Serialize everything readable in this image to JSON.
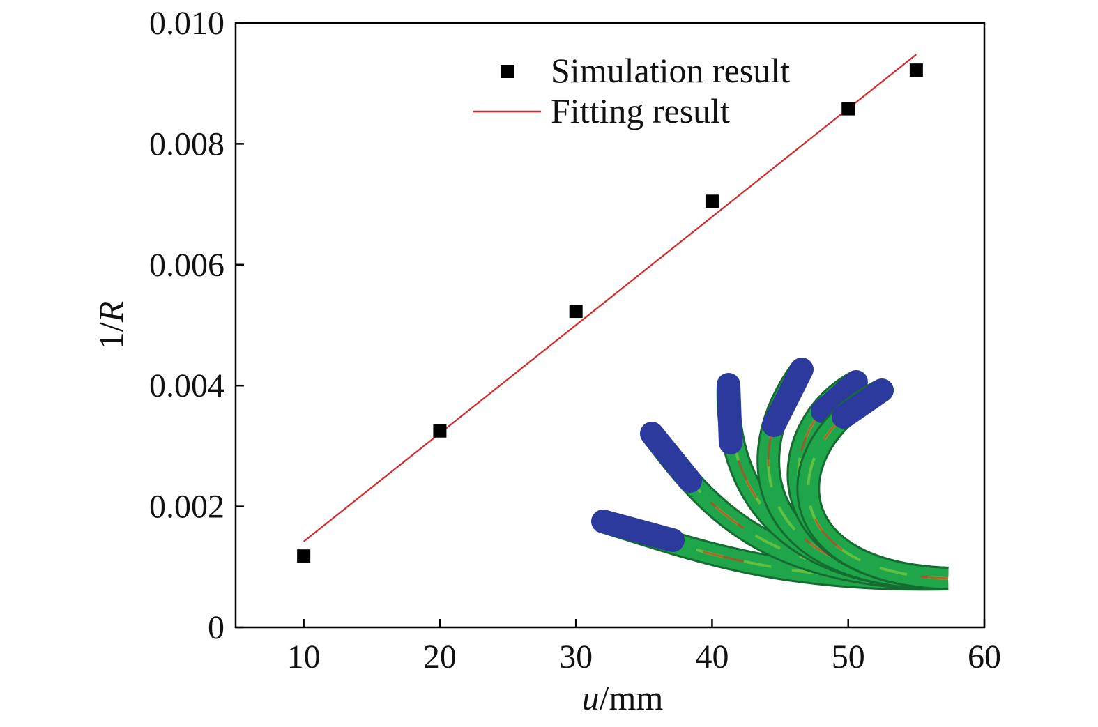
{
  "chart_data": {
    "type": "scatter",
    "xlabel_italic": "u",
    "xlabel_unit": "/mm",
    "ylabel_prefix": "1/",
    "ylabel_italic": "R",
    "xlim": [
      5,
      60
    ],
    "ylim": [
      0,
      0.01
    ],
    "x_ticks": [
      10,
      20,
      30,
      40,
      50,
      60
    ],
    "y_ticks": [
      0,
      0.002,
      0.004,
      0.006,
      0.008,
      0.01
    ],
    "y_tick_labels": [
      "0",
      "0.002",
      "0.004",
      "0.006",
      "0.008",
      "0.010"
    ],
    "grid": false,
    "legend_position": "top-right",
    "series": [
      {
        "name": "Simulation result",
        "kind": "scatter",
        "marker": "square",
        "color": "#000000",
        "x": [
          10,
          20,
          30,
          40,
          50,
          55
        ],
        "y": [
          0.00118,
          0.00325,
          0.00523,
          0.00705,
          0.00858,
          0.00922
        ]
      },
      {
        "name": "Fitting result",
        "kind": "line",
        "color": "#d62728",
        "x": [
          10,
          55
        ],
        "y": [
          0.00142,
          0.00948
        ]
      }
    ],
    "inset": "tube-bending-simulation-contours",
    "inset_colors": {
      "base": "#1fa64a",
      "end": "#2b3a9c",
      "highlight": "#d63a1f",
      "accent": "#8fd13a"
    }
  }
}
